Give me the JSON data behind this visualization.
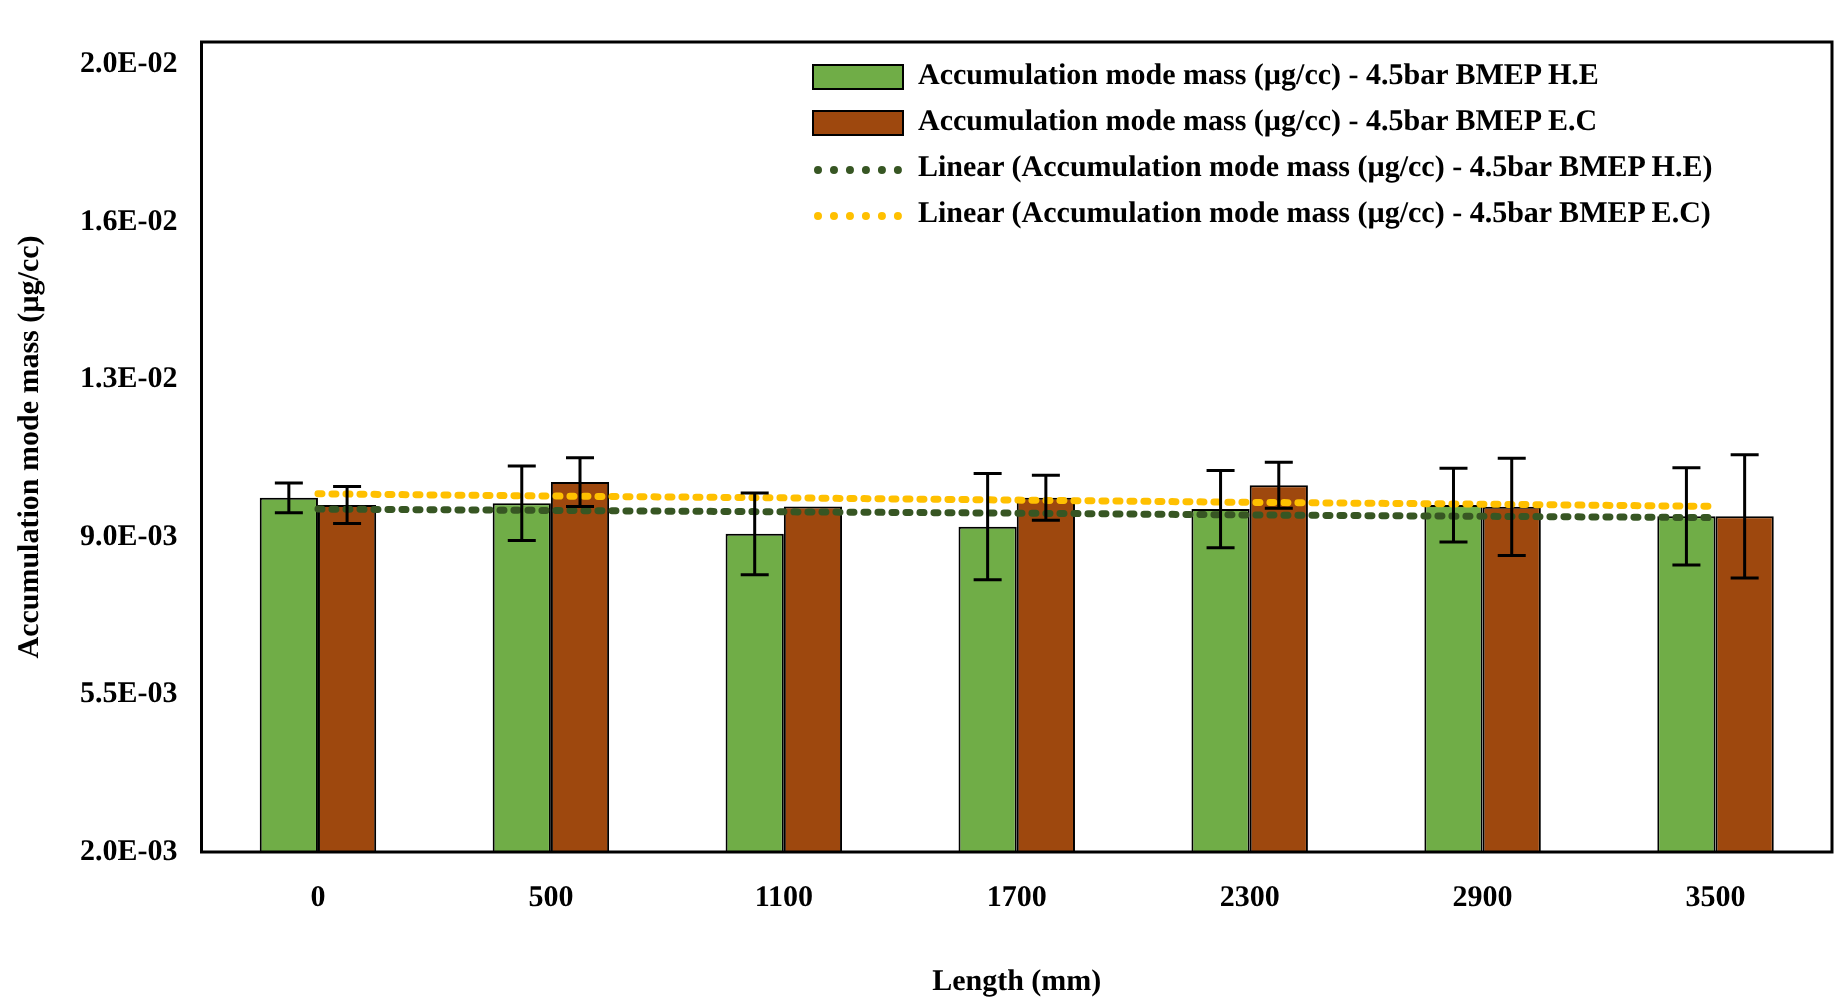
{
  "chart_data": {
    "type": "bar",
    "xlabel": "Length (mm)",
    "ylabel": "Accumulation mode mass (µg/cc)",
    "categories": [
      "0",
      "500",
      "1100",
      "1700",
      "2300",
      "2900",
      "3500"
    ],
    "series": [
      {
        "name": "Accumulation mode mass (µg/cc) - 4.5bar BMEP H.E",
        "color": "#70ad47",
        "values": [
          0.00987,
          0.00975,
          0.00907,
          0.00923,
          0.00962,
          0.00971,
          0.00946
        ],
        "errors": [
          0.00033,
          0.00083,
          0.00091,
          0.00118,
          0.00086,
          0.00082,
          0.00108
        ]
      },
      {
        "name": "Accumulation mode mass (µg/cc) - 4.5bar BMEP E.C",
        "color": "#9e480e",
        "values": [
          0.00971,
          0.01022,
          0.00968,
          0.00987,
          0.01015,
          0.00967,
          0.00946
        ],
        "errors": [
          0.00041,
          0.00054,
          null,
          0.0005,
          0.00051,
          0.00108,
          0.00137
        ]
      },
      {
        "name": "Linear (Accumulation mode mass (µg/cc) - 4.5bar BMEP H.E)",
        "type": "line",
        "color": "#375623",
        "line_style": "dotted",
        "values": [
          0.00962,
          0.00959,
          0.00956,
          0.00953,
          0.00949,
          0.00946,
          0.00943
        ]
      },
      {
        "name": "Linear (Accumulation mode mass (µg/cc) - 4.5bar BMEP E.C)",
        "type": "line",
        "color": "#ffc000",
        "line_style": "dotted",
        "values": [
          0.00996,
          0.00991,
          0.00987,
          0.00982,
          0.00977,
          0.00973,
          0.00968
        ]
      }
    ],
    "ylim": [
      0.002,
      0.02
    ],
    "yticks": [
      {
        "value": 0.002,
        "label": "2.0E-03"
      },
      {
        "value": 0.0055,
        "label": "5.5E-03"
      },
      {
        "value": 0.009,
        "label": "9.0E-03"
      },
      {
        "value": 0.0125,
        "label": "1.3E-02"
      },
      {
        "value": 0.016,
        "label": "1.6E-02"
      },
      {
        "value": 0.0195,
        "label": "2.0E-02"
      }
    ],
    "grid": false,
    "legend": "top right",
    "marker": "none"
  }
}
